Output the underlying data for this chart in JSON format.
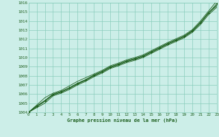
{
  "xlabel": "Graphe pression niveau de la mer (hPa)",
  "bg_color": "#cceee8",
  "grid_color": "#88ccbb",
  "line_color": "#1a5c1a",
  "text_color": "#1a5c1a",
  "xlim": [
    0,
    23
  ],
  "ylim": [
    1004,
    1016
  ],
  "xticks": [
    0,
    1,
    2,
    3,
    4,
    5,
    6,
    7,
    8,
    9,
    10,
    11,
    12,
    13,
    14,
    15,
    16,
    17,
    18,
    19,
    20,
    21,
    22,
    23
  ],
  "yticks": [
    1004,
    1005,
    1006,
    1007,
    1008,
    1009,
    1010,
    1011,
    1012,
    1013,
    1014,
    1015,
    1016
  ],
  "series": [
    [
      1004.0,
      1004.5,
      1005.0,
      1005.8,
      1006.1,
      1006.5,
      1007.0,
      1007.4,
      1007.9,
      1008.3,
      1008.8,
      1009.1,
      1009.45,
      1009.7,
      1010.0,
      1010.45,
      1010.9,
      1011.35,
      1011.75,
      1012.15,
      1012.75,
      1013.6,
      1014.7,
      1015.5
    ],
    [
      1004.0,
      1004.6,
      1005.2,
      1005.9,
      1006.2,
      1006.6,
      1007.1,
      1007.5,
      1008.0,
      1008.4,
      1008.9,
      1009.2,
      1009.55,
      1009.8,
      1010.1,
      1010.55,
      1011.0,
      1011.45,
      1011.85,
      1012.25,
      1012.85,
      1013.75,
      1014.85,
      1015.65
    ],
    [
      1004.0,
      1004.7,
      1005.3,
      1006.0,
      1006.3,
      1006.7,
      1007.2,
      1007.6,
      1008.1,
      1008.5,
      1009.0,
      1009.3,
      1009.65,
      1009.9,
      1010.2,
      1010.65,
      1011.1,
      1011.55,
      1011.95,
      1012.35,
      1012.95,
      1013.85,
      1014.95,
      1015.75
    ],
    [
      1004.0,
      1004.8,
      1005.6,
      1006.1,
      1006.4,
      1006.9,
      1007.4,
      1007.8,
      1008.2,
      1008.6,
      1009.1,
      1009.4,
      1009.75,
      1010.0,
      1010.3,
      1010.75,
      1011.2,
      1011.65,
      1012.05,
      1012.45,
      1013.05,
      1014.0,
      1015.1,
      1016.2
    ]
  ],
  "marker_x": [
    0,
    1,
    2,
    3,
    4,
    5,
    6,
    7,
    8,
    9,
    10,
    11,
    12,
    13,
    14,
    15,
    16,
    17,
    18,
    19,
    20,
    21,
    22,
    23
  ],
  "marker_y": [
    1004.0,
    1004.65,
    1005.25,
    1005.95,
    1006.25,
    1006.7,
    1007.15,
    1007.55,
    1008.05,
    1008.45,
    1008.95,
    1009.25,
    1009.6,
    1009.85,
    1010.15,
    1010.6,
    1011.05,
    1011.5,
    1011.9,
    1012.3,
    1012.9,
    1013.8,
    1014.9,
    1015.9
  ]
}
